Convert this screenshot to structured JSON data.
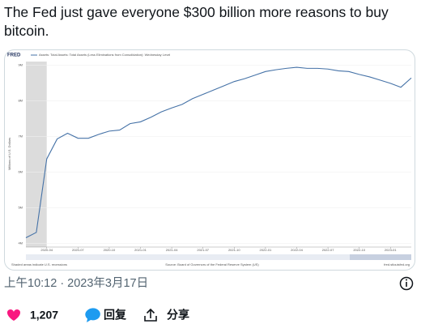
{
  "tweet": {
    "text": "The Fed just gave everyone $300 billion more reasons to buy bitcoin.",
    "timestamp": "上午10:12 · 2023年3月17日",
    "likes": "1,207",
    "reply": "回复",
    "share": "分享"
  },
  "chart_data": {
    "type": "line",
    "logo": "FRED",
    "y_label": "Millions of U.S. Dollars",
    "x": [
      "2020-02",
      "2020-03",
      "2020-04",
      "2020-05",
      "2020-06",
      "2020-07",
      "2020-08",
      "2020-09",
      "2020-10",
      "2020-11",
      "2020-12",
      "2021-01",
      "2021-02",
      "2021-03",
      "2021-04",
      "2021-05",
      "2021-06",
      "2021-07",
      "2021-08",
      "2021-09",
      "2021-10",
      "2021-11",
      "2021-12",
      "2022-01",
      "2022-02",
      "2022-03",
      "2022-04",
      "2022-05",
      "2022-06",
      "2022-07",
      "2022-08",
      "2022-09",
      "2022-10",
      "2022-11",
      "2022-12",
      "2023-01",
      "2023-02",
      "2023-03"
    ],
    "series": [
      {
        "name": "Assets: Total Assets: Total Assets (Less Eliminations from Consolidation): Wednesday Level",
        "color": "#4572a7",
        "values": [
          4160000,
          4310000,
          6370000,
          6930000,
          7090000,
          6950000,
          6950000,
          7060000,
          7150000,
          7180000,
          7360000,
          7410000,
          7540000,
          7690000,
          7800000,
          7900000,
          8060000,
          8180000,
          8300000,
          8420000,
          8540000,
          8620000,
          8720000,
          8820000,
          8870000,
          8910000,
          8940000,
          8910000,
          8910000,
          8890000,
          8840000,
          8820000,
          8740000,
          8670000,
          8580000,
          8490000,
          8380000,
          8640000
        ]
      }
    ],
    "xlim": [
      "2020-02",
      "2023-03"
    ],
    "xticks": [
      "2020-04",
      "2020-07",
      "2020-10",
      "2021-01",
      "2021-04",
      "2021-07",
      "2021-10",
      "2022-01",
      "2022-04",
      "2022-07",
      "2022-10",
      "2023-01"
    ],
    "ylim": [
      3900000,
      9100000
    ],
    "yticks": [
      {
        "value": 4000000,
        "label": "4M"
      },
      {
        "value": 5000000,
        "label": "5M"
      },
      {
        "value": 6000000,
        "label": "6M"
      },
      {
        "value": 7000000,
        "label": "7M"
      },
      {
        "value": 8000000,
        "label": "8M"
      },
      {
        "value": 9000000,
        "label": "9M"
      }
    ],
    "grid": true,
    "recession": {
      "start": "2020-02",
      "end": "2020-04"
    },
    "footer_left": "Shaded areas indicate U.S. recessions",
    "footer_source": "Source: Board of Governors of the Federal Reserve System (US)",
    "footer_right": "fred.stlouisfed.org"
  }
}
